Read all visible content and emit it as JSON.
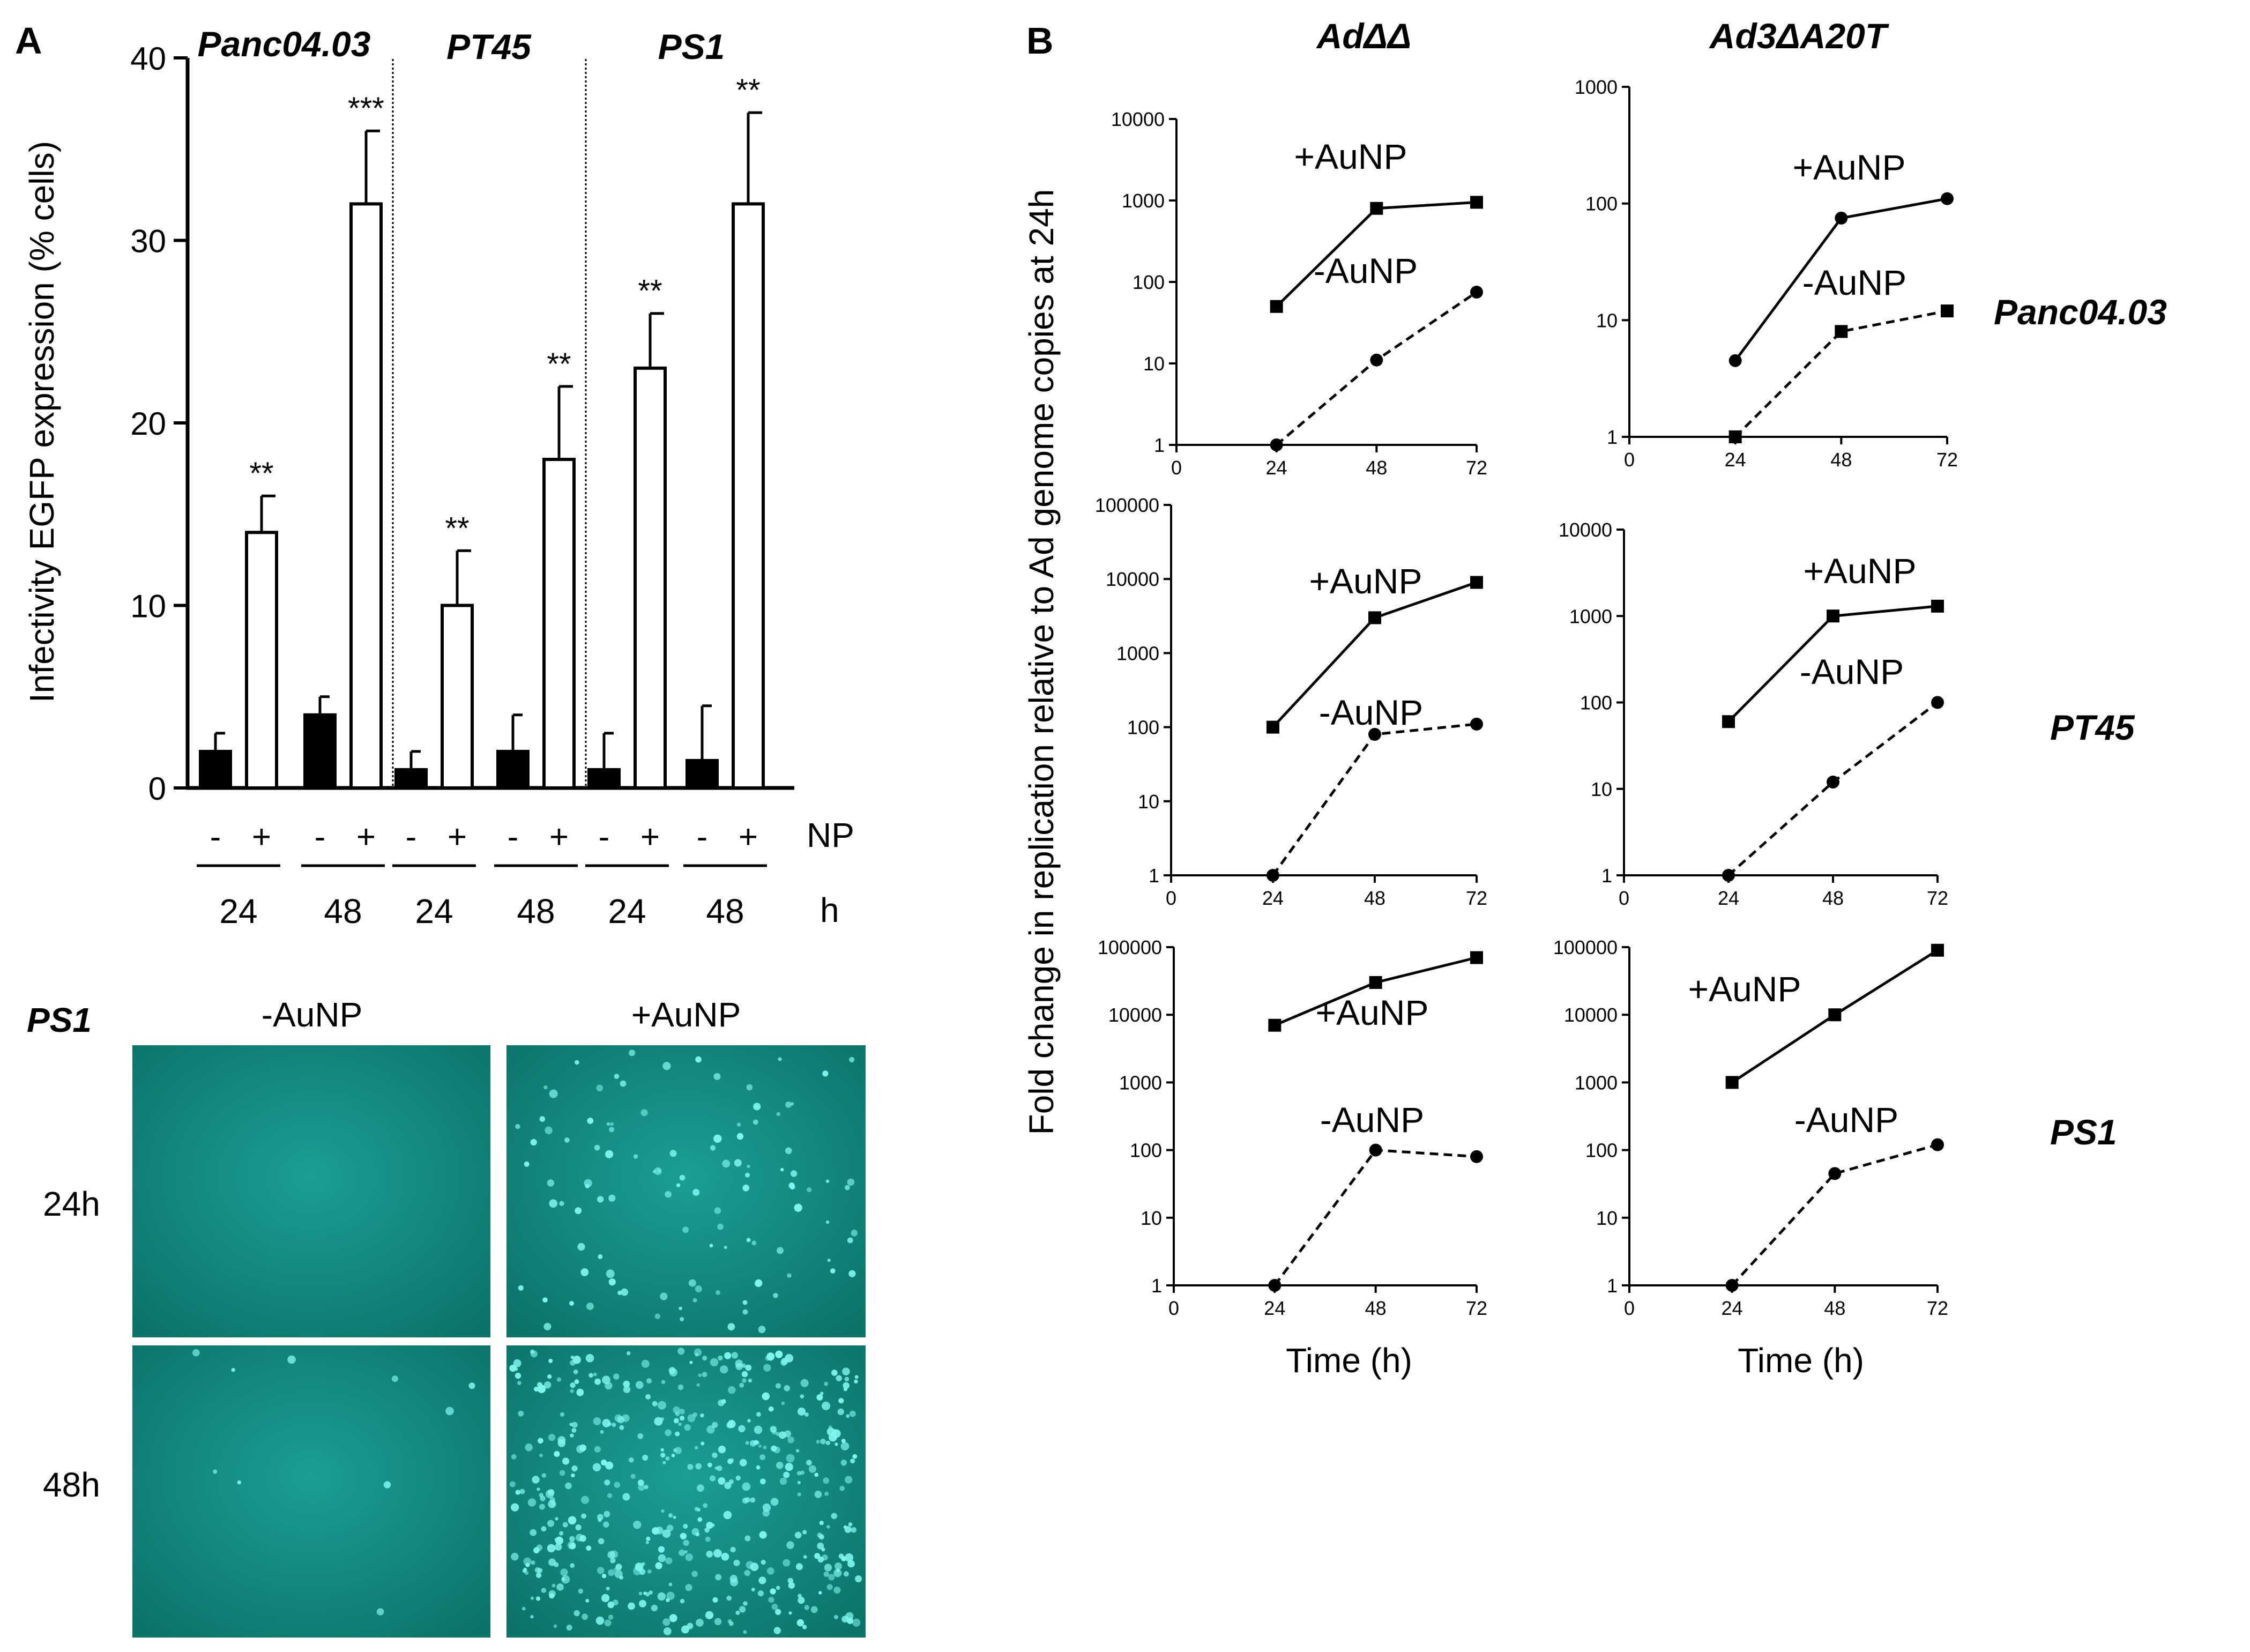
{
  "panel_a": {
    "label": "A",
    "groups": [
      "Panc04.03",
      "PT45",
      "PS1"
    ],
    "np_label": "NP",
    "h_label": "h",
    "minus": "-",
    "plus": "+",
    "time_labels": [
      "24",
      "48",
      "24",
      "48",
      "24",
      "48"
    ]
  },
  "micrographs": {
    "cell_line": "PS1",
    "col_labels": [
      "-AuNP",
      "+AuNP"
    ],
    "row_labels": [
      "24h",
      "48h"
    ]
  },
  "panel_b": {
    "label": "B",
    "col_titles": [
      "AdΔΔ",
      "Ad3ΔA20T"
    ],
    "row_titles": [
      "Panc04.03",
      "PT45",
      "PS1"
    ],
    "ylabel": "Fold change in replication relative to Ad genome copies at 24h",
    "xlabel": "Time (h)",
    "plus_label": "+AuNP",
    "minus_label": "-AuNP"
  },
  "chart_data": [
    {
      "type": "bar",
      "id": "panel-a",
      "title": "",
      "ylabel": "Infectivity EGFP expression (% cells)",
      "xlabel": "",
      "ylim": [
        0,
        40
      ],
      "yticks": [
        0,
        10,
        20,
        30,
        40
      ],
      "groups": [
        "Panc04.03",
        "PT45",
        "PS1"
      ],
      "series": [
        {
          "name": "-NP",
          "fill": "#000000",
          "values": [
            2,
            4,
            1,
            2,
            1,
            1.5
          ],
          "errors": [
            1,
            1,
            1,
            2,
            2,
            3
          ]
        },
        {
          "name": "+NP",
          "fill": "#ffffff",
          "values": [
            14,
            32,
            10,
            18,
            23,
            32
          ],
          "errors": [
            2,
            4,
            3,
            4,
            3,
            5
          ]
        }
      ],
      "categories": [
        "24",
        "48",
        "24",
        "48",
        "24",
        "48"
      ],
      "significance": [
        "**",
        "***",
        "**",
        "**",
        "**",
        "**"
      ]
    },
    {
      "type": "line",
      "id": "b-adaa-panc",
      "x": [
        24,
        48,
        72
      ],
      "xticks": [
        0,
        24,
        48,
        72
      ],
      "ylim": [
        1,
        10000
      ],
      "yscale": "log",
      "series": [
        {
          "name": "+AuNP",
          "marker": "square",
          "dash": false,
          "x": [
            24,
            48,
            72
          ],
          "y": [
            50,
            800,
            950
          ]
        },
        {
          "name": "-AuNP",
          "marker": "circle",
          "dash": true,
          "x": [
            24,
            48,
            72
          ],
          "y": [
            1,
            11,
            75
          ]
        }
      ]
    },
    {
      "type": "line",
      "id": "b-ad3-panc",
      "x": [
        24,
        48,
        72
      ],
      "xticks": [
        0,
        24,
        48,
        72
      ],
      "ylim": [
        1,
        1000
      ],
      "yscale": "log",
      "series": [
        {
          "name": "+AuNP",
          "marker": "circle",
          "dash": false,
          "x": [
            24,
            48,
            72
          ],
          "y": [
            4.5,
            75,
            110
          ]
        },
        {
          "name": "-AuNP",
          "marker": "square",
          "dash": true,
          "x": [
            24,
            48,
            72
          ],
          "y": [
            1,
            8,
            12
          ]
        }
      ]
    },
    {
      "type": "line",
      "id": "b-adaa-pt45",
      "x": [
        24,
        48,
        72
      ],
      "xticks": [
        0,
        24,
        48,
        72
      ],
      "ylim": [
        1,
        100000
      ],
      "yscale": "log",
      "series": [
        {
          "name": "+AuNP",
          "marker": "square",
          "dash": false,
          "x": [
            24,
            48,
            72
          ],
          "y": [
            100,
            3000,
            9000
          ]
        },
        {
          "name": "-AuNP",
          "marker": "circle",
          "dash": true,
          "x": [
            24,
            48,
            72
          ],
          "y": [
            1,
            80,
            110
          ]
        }
      ]
    },
    {
      "type": "line",
      "id": "b-ad3-pt45",
      "x": [
        24,
        48,
        72
      ],
      "xticks": [
        0,
        24,
        48,
        72
      ],
      "ylim": [
        1,
        10000
      ],
      "yscale": "log",
      "series": [
        {
          "name": "+AuNP",
          "marker": "square",
          "dash": false,
          "x": [
            24,
            48,
            72
          ],
          "y": [
            60,
            1000,
            1300
          ]
        },
        {
          "name": "-AuNP",
          "marker": "circle",
          "dash": true,
          "x": [
            24,
            48,
            72
          ],
          "y": [
            1,
            12,
            100
          ]
        }
      ]
    },
    {
      "type": "line",
      "id": "b-adaa-ps1",
      "x": [
        24,
        48,
        72
      ],
      "xticks": [
        0,
        24,
        48,
        72
      ],
      "ylim": [
        1,
        100000
      ],
      "yscale": "log",
      "series": [
        {
          "name": "+AuNP",
          "marker": "square",
          "dash": false,
          "x": [
            24,
            48,
            72
          ],
          "y": [
            7000,
            30000,
            70000
          ]
        },
        {
          "name": "-AuNP",
          "marker": "circle",
          "dash": true,
          "x": [
            24,
            48,
            72
          ],
          "y": [
            1,
            100,
            80
          ]
        }
      ]
    },
    {
      "type": "line",
      "id": "b-ad3-ps1",
      "x": [
        24,
        48,
        72
      ],
      "xticks": [
        0,
        24,
        48,
        72
      ],
      "ylim": [
        1,
        100000
      ],
      "yscale": "log",
      "series": [
        {
          "name": "+AuNP",
          "marker": "square",
          "dash": false,
          "x": [
            24,
            48,
            72
          ],
          "y": [
            1000,
            10000,
            90000
          ]
        },
        {
          "name": "-AuNP",
          "marker": "circle",
          "dash": true,
          "x": [
            24,
            48,
            72
          ],
          "y": [
            1,
            45,
            120
          ]
        }
      ]
    }
  ]
}
